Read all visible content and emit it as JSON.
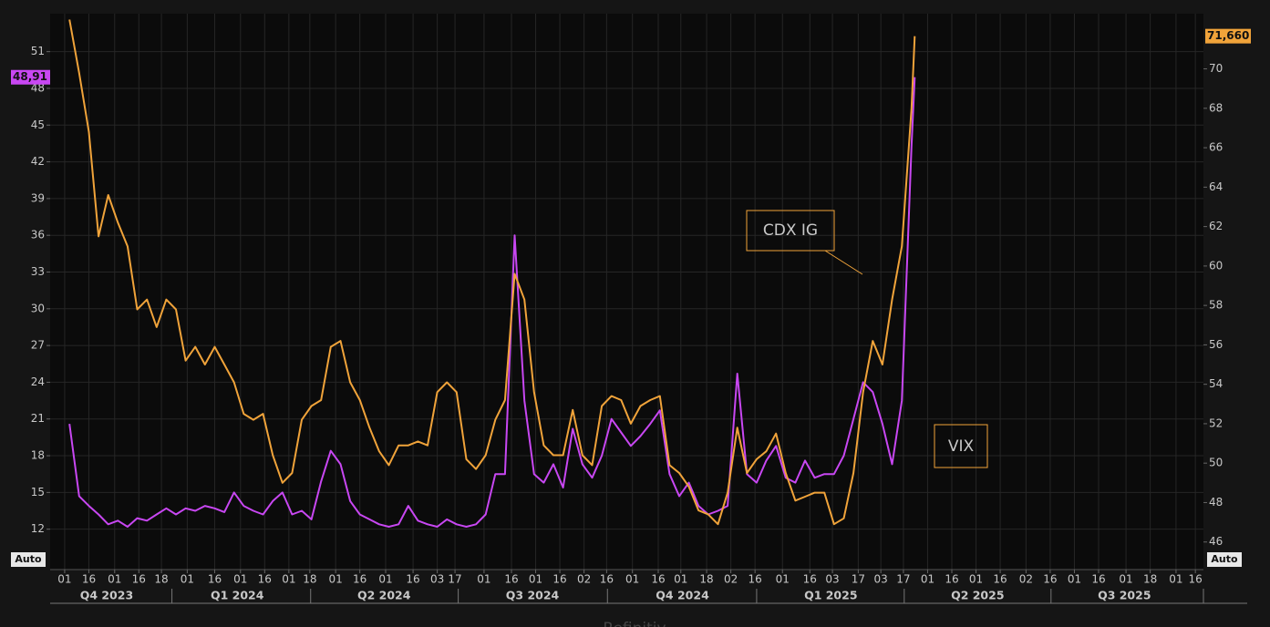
{
  "chart_data": {
    "type": "line",
    "x": [
      12,
      18,
      24,
      30,
      36,
      42,
      48,
      54,
      60,
      66,
      72,
      78,
      84,
      90,
      96,
      102,
      108,
      114,
      120,
      126,
      132,
      138,
      144,
      150,
      156,
      162,
      168,
      174,
      180,
      186,
      192,
      198,
      204,
      210,
      216,
      222,
      228,
      234,
      240,
      246,
      252,
      258,
      264,
      270,
      276,
      282,
      288,
      294,
      300,
      306,
      312,
      318,
      324,
      330,
      336,
      342,
      348,
      354,
      360,
      366,
      372,
      378,
      384,
      390,
      396,
      402,
      408,
      414,
      420,
      426,
      432,
      438,
      444,
      450,
      456,
      462,
      468,
      474,
      480,
      486,
      492,
      498,
      504,
      510,
      516,
      522,
      528,
      534,
      536
    ],
    "xlim": [
      0,
      715
    ],
    "xticks": [
      {
        "value": 9,
        "label": "01"
      },
      {
        "value": 24,
        "label": "16"
      },
      {
        "value": 40,
        "label": "01"
      },
      {
        "value": 55,
        "label": "16"
      },
      {
        "value": 69,
        "label": "18"
      },
      {
        "value": 85,
        "label": "01"
      },
      {
        "value": 102,
        "label": "16"
      },
      {
        "value": 118,
        "label": "01"
      },
      {
        "value": 133,
        "label": "16"
      },
      {
        "value": 148,
        "label": "01"
      },
      {
        "value": 161,
        "label": "18"
      },
      {
        "value": 177,
        "label": "01"
      },
      {
        "value": 192,
        "label": "16"
      },
      {
        "value": 208,
        "label": "01"
      },
      {
        "value": 225,
        "label": "16"
      },
      {
        "value": 240,
        "label": "03"
      },
      {
        "value": 251,
        "label": "17"
      },
      {
        "value": 269,
        "label": "01"
      },
      {
        "value": 286,
        "label": "16"
      },
      {
        "value": 301,
        "label": "01"
      },
      {
        "value": 316,
        "label": "16"
      },
      {
        "value": 331,
        "label": "02"
      },
      {
        "value": 345,
        "label": "16"
      },
      {
        "value": 361,
        "label": "01"
      },
      {
        "value": 377,
        "label": "16"
      },
      {
        "value": 391,
        "label": "01"
      },
      {
        "value": 407,
        "label": "18"
      },
      {
        "value": 422,
        "label": "02"
      },
      {
        "value": 437,
        "label": "16"
      },
      {
        "value": 454,
        "label": "01"
      },
      {
        "value": 471,
        "label": "16"
      },
      {
        "value": 485,
        "label": "03"
      },
      {
        "value": 501,
        "label": "17"
      },
      {
        "value": 515,
        "label": "03"
      },
      {
        "value": 529,
        "label": "17"
      },
      {
        "value": 544,
        "label": "01"
      },
      {
        "value": 559,
        "label": "16"
      },
      {
        "value": 574,
        "label": "01"
      },
      {
        "value": 589,
        "label": "16"
      },
      {
        "value": 605,
        "label": "02"
      },
      {
        "value": 620,
        "label": "16"
      },
      {
        "value": 635,
        "label": "01"
      },
      {
        "value": 650,
        "label": "16"
      },
      {
        "value": 667,
        "label": "01"
      },
      {
        "value": 682,
        "label": "18"
      },
      {
        "value": 698,
        "label": "01"
      },
      {
        "value": 710,
        "label": "16"
      }
    ],
    "quarters": [
      {
        "value": 35,
        "label": "Q4 2023"
      },
      {
        "value": 116,
        "label": "Q1 2024"
      },
      {
        "value": 207,
        "label": "Q2 2024"
      },
      {
        "value": 299,
        "label": "Q3 2024"
      },
      {
        "value": 392,
        "label": "Q4 2024"
      },
      {
        "value": 484,
        "label": "Q1 2025"
      },
      {
        "value": 575,
        "label": "Q2 2025"
      },
      {
        "value": 666,
        "label": "Q3 2025"
      }
    ],
    "ylim": [
      8.7,
      54.1
    ],
    "yticks": [
      12,
      15,
      18,
      21,
      24,
      27,
      30,
      33,
      36,
      39,
      42,
      45,
      48,
      51
    ],
    "y2lim": [
      44.6,
      72.8
    ],
    "y2ticks": [
      46,
      48,
      50,
      52,
      54,
      56,
      58,
      60,
      62,
      64,
      66,
      68,
      70
    ],
    "series": [
      {
        "name": "VIX",
        "color": "#c847f2",
        "axis": "y",
        "last_label": "48,91",
        "values": [
          20.6,
          14.7,
          13.9,
          13.2,
          12.4,
          12.7,
          12.2,
          12.9,
          12.7,
          13.2,
          13.7,
          13.2,
          13.7,
          13.5,
          13.9,
          13.7,
          13.4,
          15.0,
          13.9,
          13.5,
          13.2,
          14.3,
          15.0,
          13.2,
          13.5,
          12.8,
          15.9,
          18.4,
          17.3,
          14.3,
          13.2,
          12.8,
          12.4,
          12.2,
          12.4,
          13.9,
          12.7,
          12.4,
          12.2,
          12.8,
          12.4,
          12.2,
          12.4,
          13.2,
          16.5,
          16.5,
          36.0,
          22.5,
          16.5,
          15.8,
          17.3,
          15.4,
          20.2,
          17.3,
          16.2,
          18.0,
          21.0,
          19.9,
          18.8,
          19.6,
          20.6,
          21.7,
          16.5,
          14.7,
          15.8,
          13.9,
          13.2,
          13.5,
          13.9,
          24.7,
          16.5,
          15.8,
          17.6,
          18.8,
          16.2,
          15.8,
          17.6,
          16.2,
          16.5,
          16.5,
          18.0,
          21.0,
          24.0,
          23.2,
          20.6,
          17.3,
          22.5,
          43.3,
          48.91
        ]
      },
      {
        "name": "CDX IG",
        "color": "#f0a33a",
        "axis": "y2",
        "last_label": "71,660",
        "values": [
          72.5,
          69.8,
          66.8,
          61.5,
          63.6,
          62.2,
          61.0,
          57.8,
          58.3,
          56.9,
          58.3,
          57.8,
          55.2,
          55.9,
          55.0,
          55.9,
          55.0,
          54.1,
          52.5,
          52.2,
          52.5,
          50.4,
          49.0,
          49.5,
          52.2,
          52.9,
          53.2,
          55.9,
          56.2,
          54.1,
          53.2,
          51.8,
          50.6,
          49.9,
          50.9,
          50.9,
          51.1,
          50.9,
          53.6,
          54.1,
          53.6,
          50.2,
          49.7,
          50.4,
          52.2,
          53.2,
          59.6,
          58.3,
          53.6,
          50.9,
          50.4,
          50.4,
          52.7,
          50.4,
          49.9,
          52.9,
          53.4,
          53.2,
          52.0,
          52.9,
          53.2,
          53.4,
          49.9,
          49.5,
          48.8,
          47.6,
          47.4,
          46.9,
          48.5,
          51.8,
          49.5,
          50.2,
          50.6,
          51.5,
          49.5,
          48.1,
          48.3,
          48.5,
          48.5,
          46.9,
          47.2,
          49.5,
          53.6,
          56.2,
          55.0,
          58.3,
          61.0,
          68.0,
          71.66
        ]
      }
    ],
    "scale_mode": "Auto",
    "source": "Refinitiv",
    "grid": true
  }
}
